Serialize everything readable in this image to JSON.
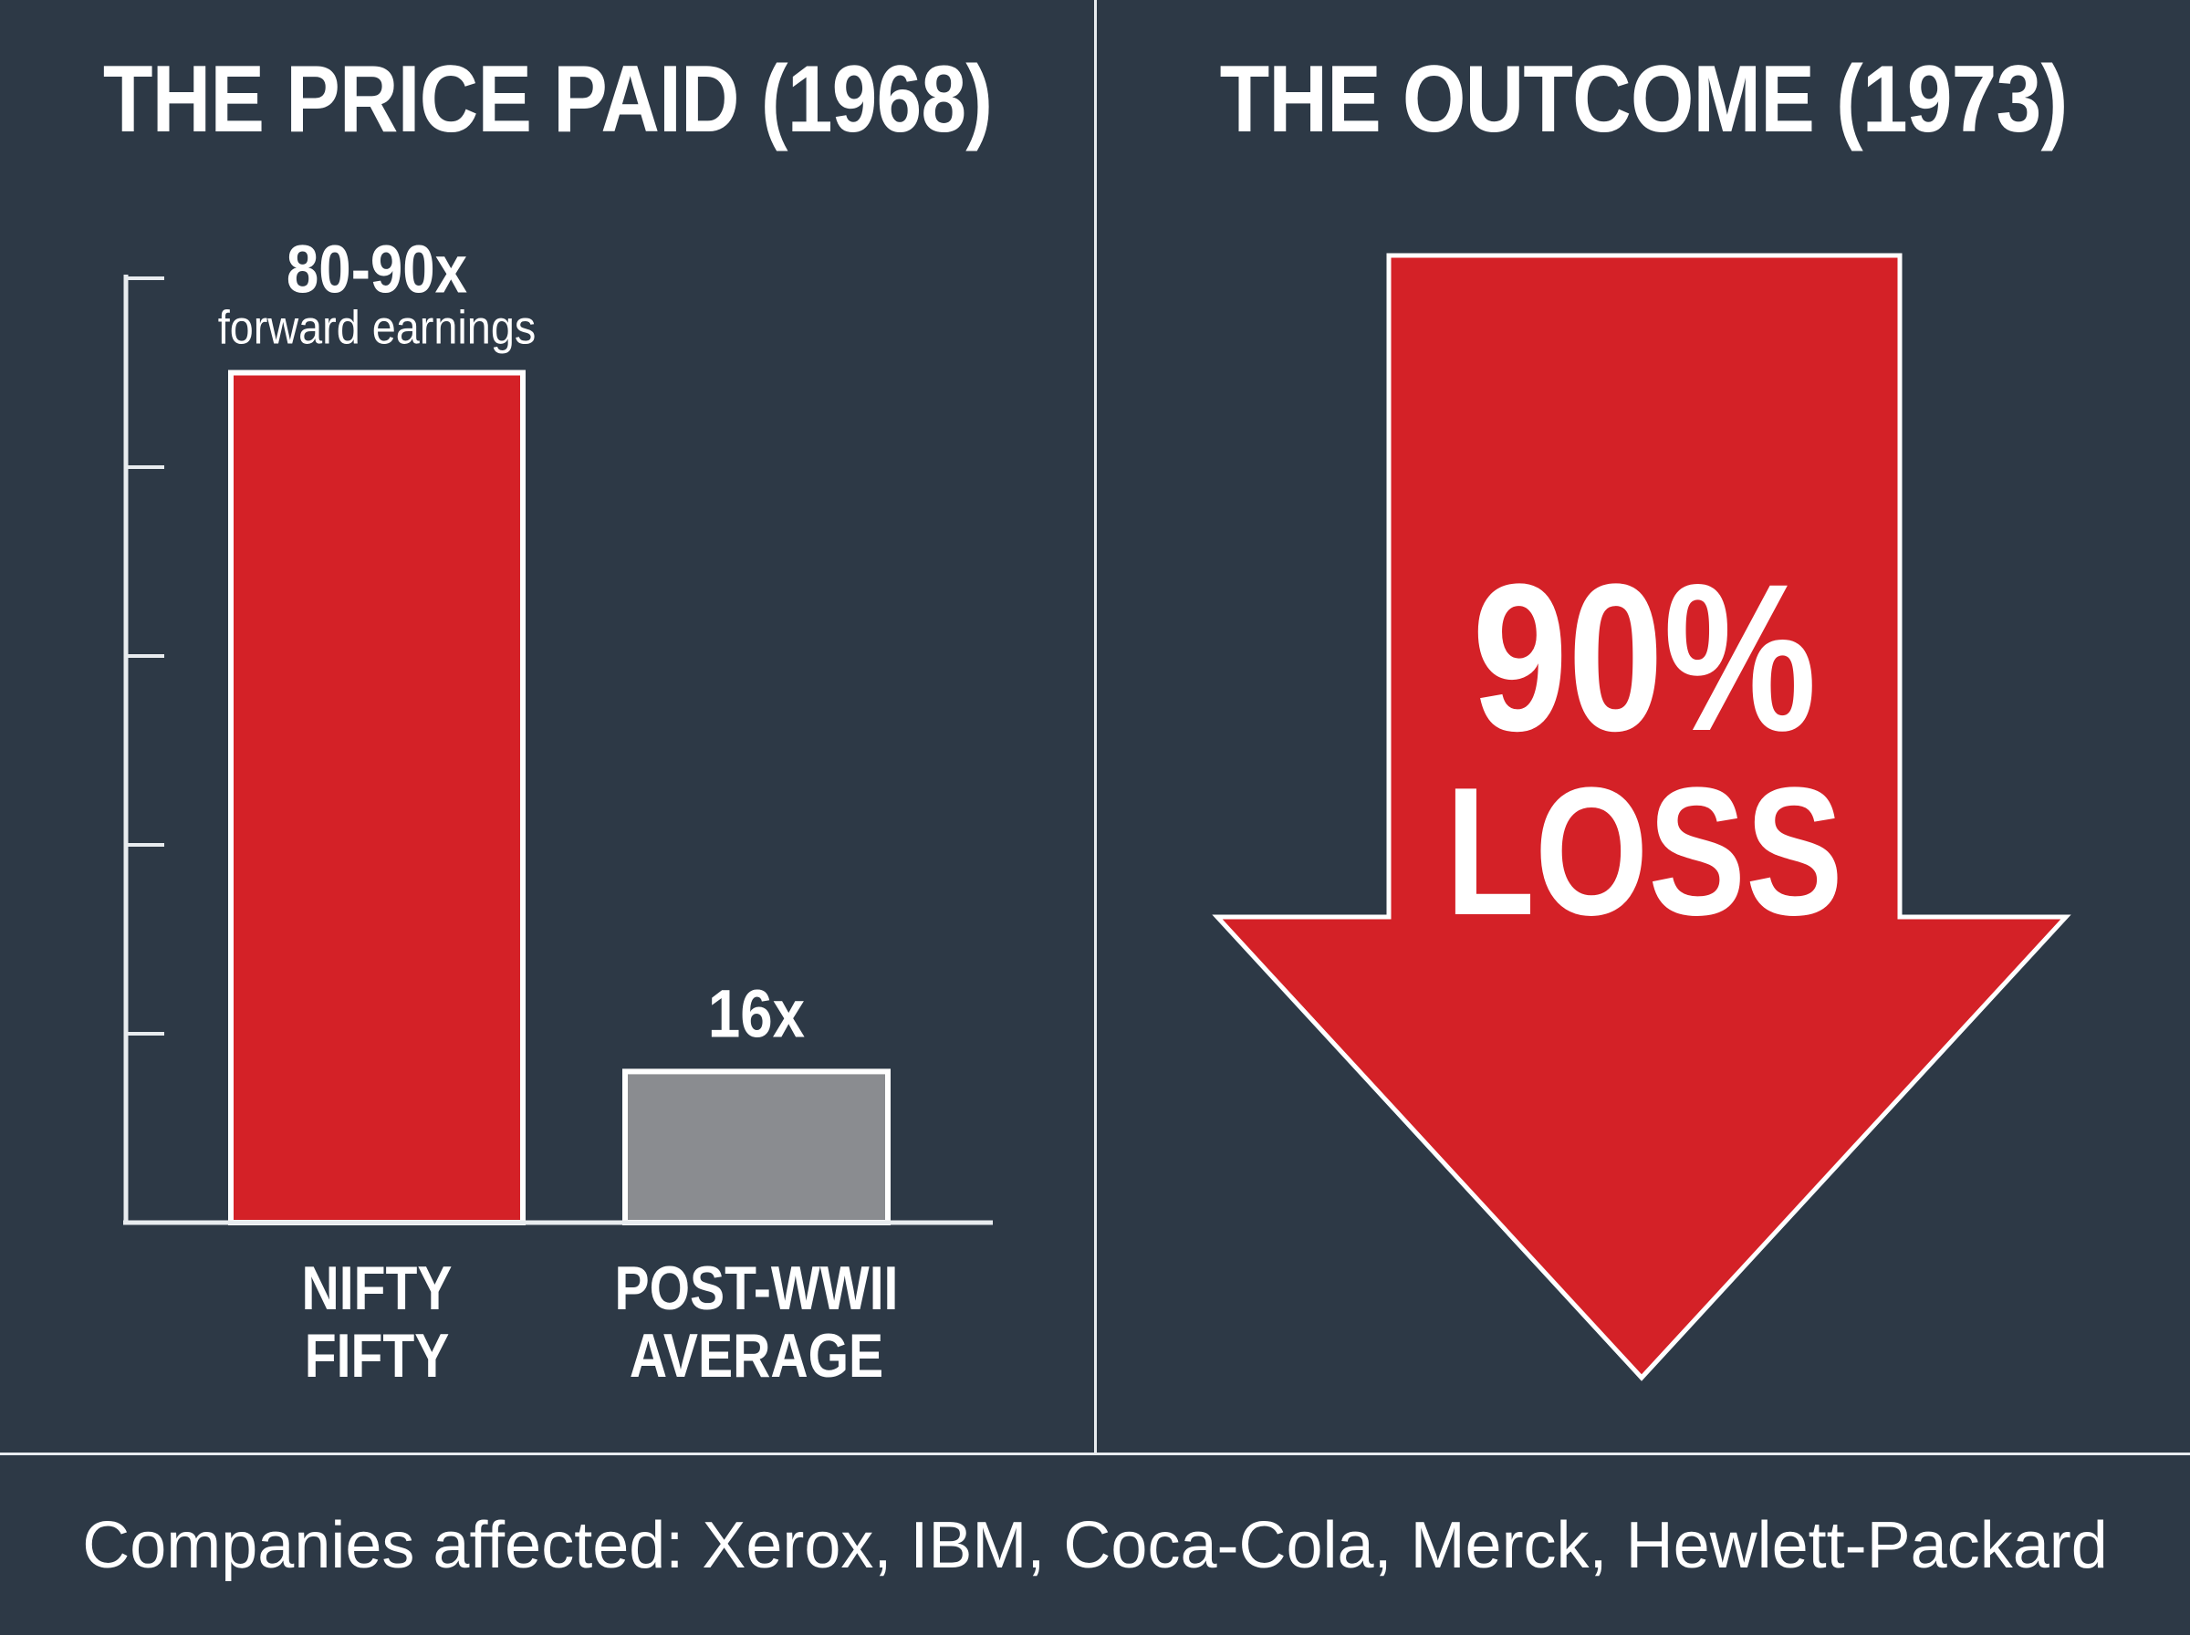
{
  "colors": {
    "background": "#2d3946",
    "accent_red": "#d42127",
    "bar_gray": "#8a8c90",
    "line": "#e8ecef"
  },
  "left_panel": {
    "title": "THE PRICE PAID (1968)"
  },
  "right_panel": {
    "title": "THE OUTCOME (1973)",
    "arrow_icon": "down-arrow-icon",
    "loss_percent": "90%",
    "loss_word": "LOSS"
  },
  "chart_data": {
    "type": "bar",
    "categories": [
      "NIFTY FIFTY",
      "POST-WWII AVERAGE"
    ],
    "category_lines": [
      [
        "NIFTY",
        "FIFTY"
      ],
      [
        "POST-WWII",
        "AVERAGE"
      ]
    ],
    "values": [
      90,
      16
    ],
    "value_labels": [
      "80-90x",
      "16x"
    ],
    "value_sublabels": [
      "forward earnings",
      ""
    ],
    "bar_colors": [
      "#d42127",
      "#8a8c90"
    ],
    "ylim": [
      0,
      100
    ],
    "yticks": [
      0,
      20,
      40,
      60,
      80,
      100
    ],
    "grid": false,
    "title": "",
    "xlabel": "",
    "ylabel": ""
  },
  "footer": {
    "text": "Companies affected: Xerox, IBM, Coca-Cola, Merck, Hewlett-Packard"
  }
}
